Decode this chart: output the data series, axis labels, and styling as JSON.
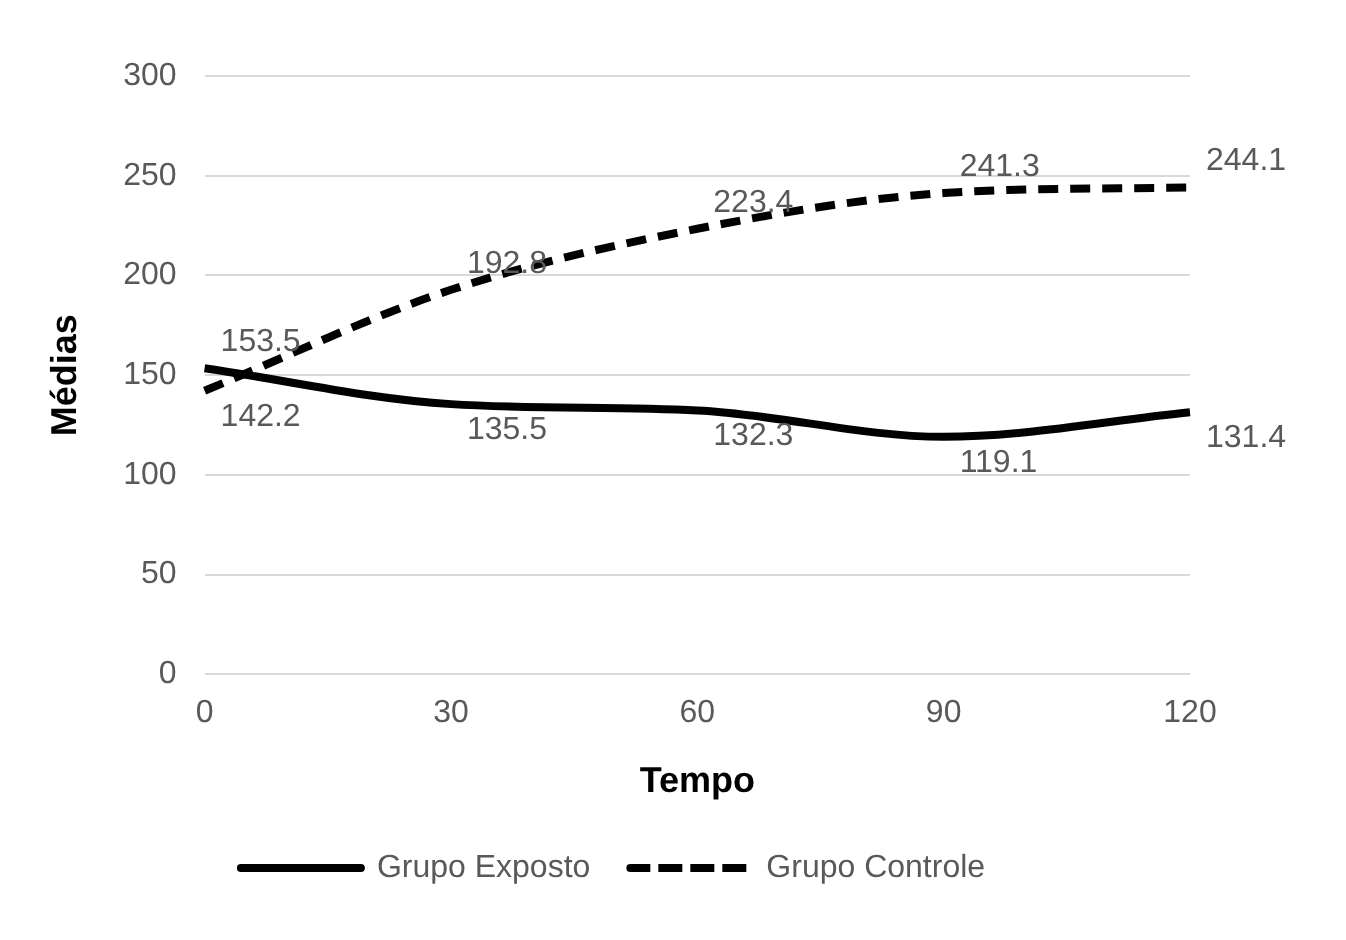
{
  "chart_data": {
    "type": "line",
    "xlabel": "Tempo",
    "ylabel": "Médias",
    "categories": [
      "0",
      "30",
      "60",
      "90",
      "120"
    ],
    "series": [
      {
        "name": "Grupo Exposto",
        "color": "#000000",
        "line_style": "solid",
        "values": [
          153.5,
          135.5,
          132.3,
          119.1,
          131.4
        ]
      },
      {
        "name": "Grupo Controle",
        "color": "#000000",
        "line_style": "dashed",
        "values": [
          142.2,
          192.8,
          223.4,
          241.3,
          244.1
        ]
      }
    ],
    "ylim": [
      0,
      300
    ],
    "yticks": [
      0,
      50,
      100,
      150,
      200,
      250,
      300
    ],
    "grid": "y",
    "legend": "bottom",
    "marker": "none",
    "data_labels": true
  }
}
